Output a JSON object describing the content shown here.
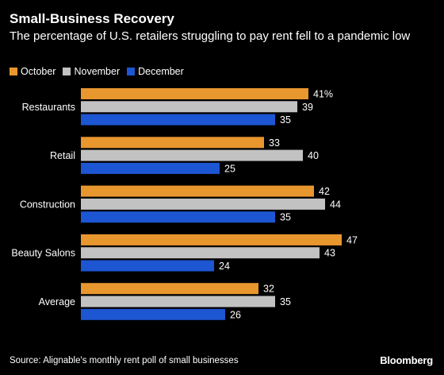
{
  "header": {
    "title": "Small-Business Recovery",
    "subtitle": "The percentage of U.S. retailers struggling to pay rent fell to a pandemic low"
  },
  "colors": {
    "October": "#e8962e",
    "November": "#c2c2c2",
    "December": "#1d56d2"
  },
  "chart_data": {
    "type": "bar",
    "orientation": "horizontal",
    "title": "Small-Business Recovery",
    "subtitle": "The percentage of U.S. retailers struggling to pay rent fell to a pandemic low",
    "categories": [
      "Restaurants",
      "Retail",
      "Construction",
      "Beauty Salons",
      "Average"
    ],
    "series": [
      {
        "name": "October",
        "values": [
          41,
          33,
          42,
          47,
          32
        ]
      },
      {
        "name": "November",
        "values": [
          39,
          40,
          44,
          43,
          35
        ]
      },
      {
        "name": "December",
        "values": [
          35,
          25,
          35,
          24,
          26
        ]
      }
    ],
    "value_labels": [
      [
        "41%",
        "39",
        "35"
      ],
      [
        "33",
        "40",
        "25"
      ],
      [
        "42",
        "44",
        "35"
      ],
      [
        "47",
        "43",
        "24"
      ],
      [
        "32",
        "35",
        "26"
      ]
    ],
    "xlim": [
      0,
      50
    ],
    "legend": "top-left",
    "grid": false
  },
  "footer": {
    "source": "Source: Alignable's monthly rent poll of small businesses",
    "logo": "Bloomberg"
  }
}
